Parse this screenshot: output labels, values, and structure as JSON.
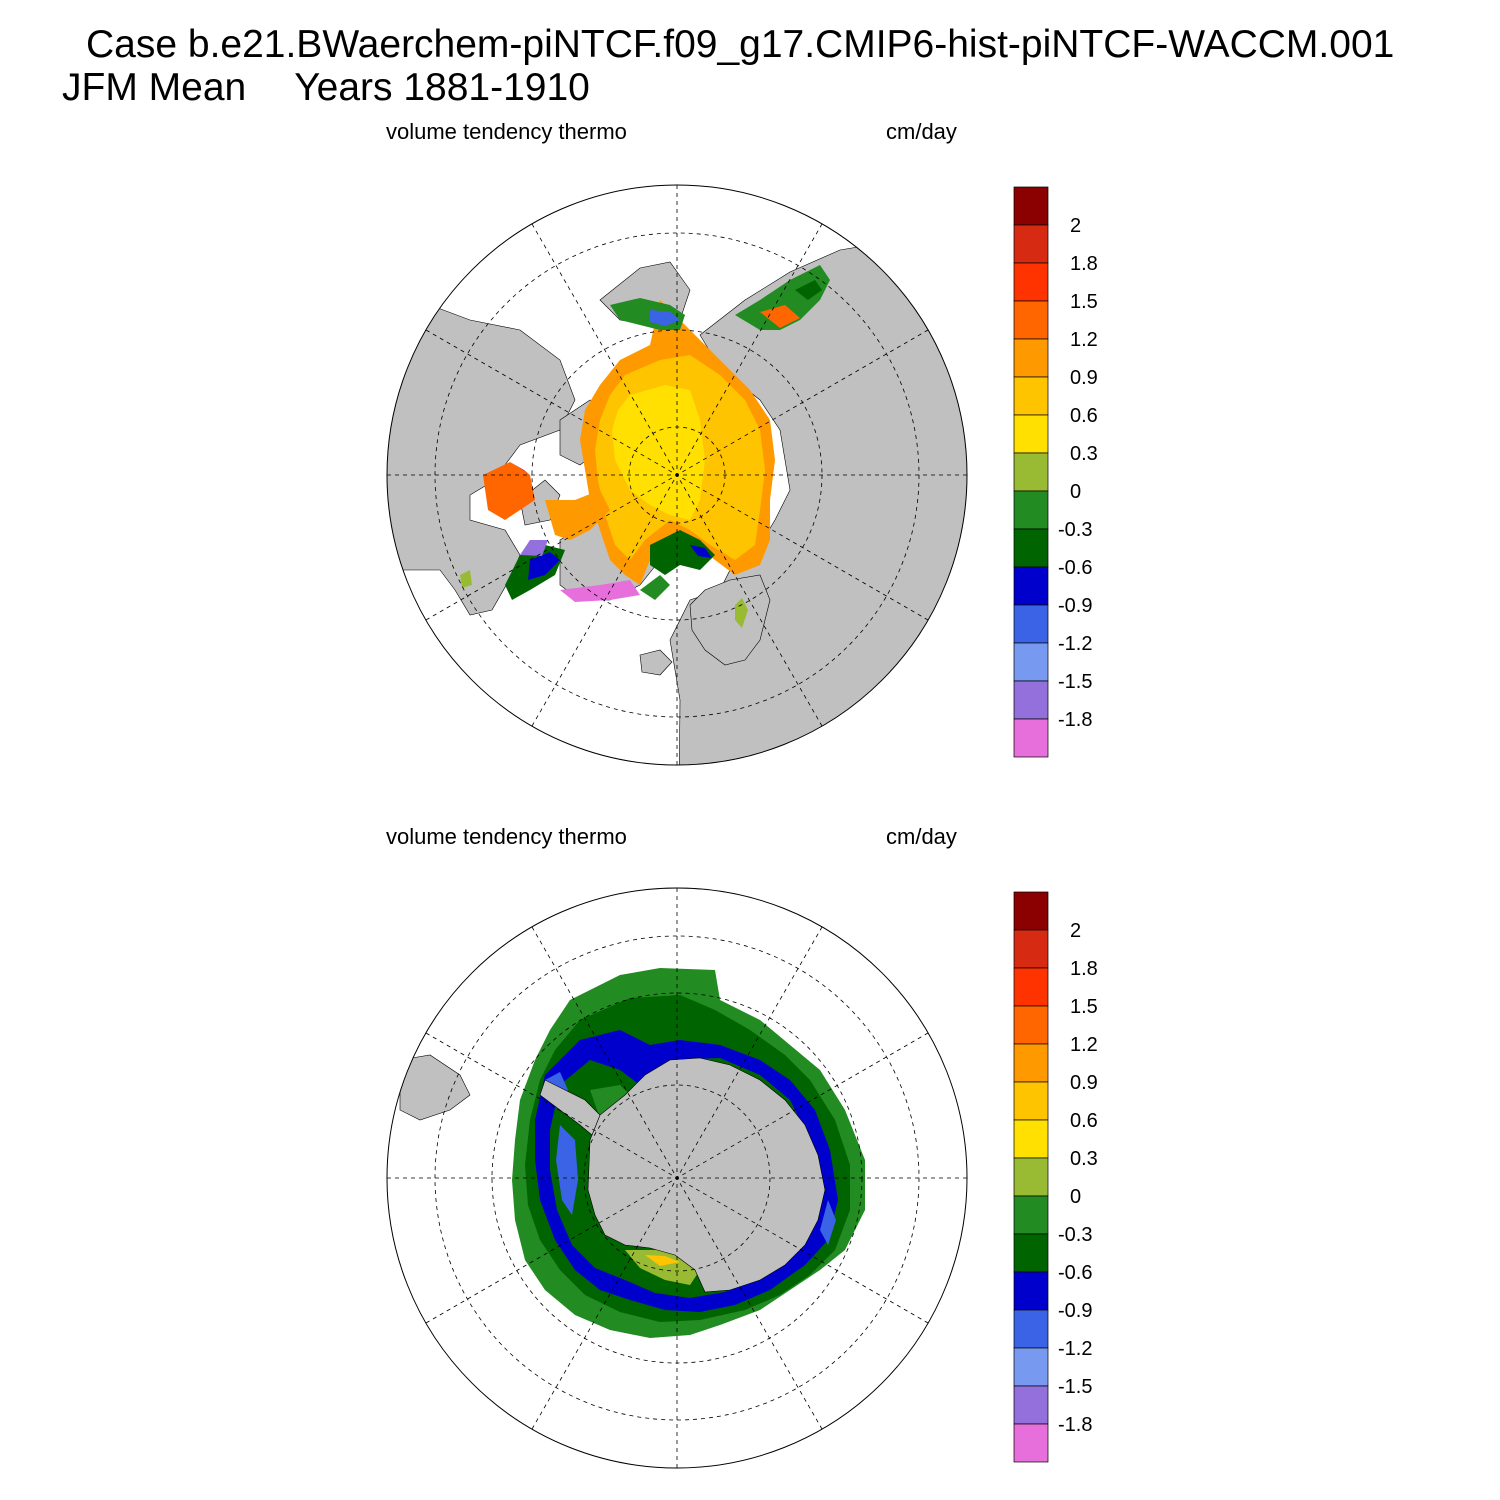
{
  "title": {
    "case": "Case b.e21.BWaerchem-piNTCF.f09_g17.CMIP6-hist-piNTCF-WACCM.001",
    "season": "JFM Mean",
    "years": "Years 1881-1910"
  },
  "panels": [
    {
      "id": "nh",
      "variable": "volume tendency thermo",
      "units": "cm/day"
    },
    {
      "id": "sh",
      "variable": "volume tendency thermo",
      "units": "cm/day"
    }
  ],
  "colorbar": {
    "labels": [
      "2",
      "1.8",
      "1.5",
      "1.2",
      "0.9",
      "0.6",
      "0.3",
      "0",
      "-0.3",
      "-0.6",
      "-0.9",
      "-1.2",
      "-1.5",
      "-1.8"
    ],
    "colors": [
      "#8b0000",
      "#d62a12",
      "#ff3300",
      "#ff6600",
      "#ff9900",
      "#ffc400",
      "#ffe000",
      "#99bb33",
      "#228b22",
      "#006400",
      "#0000cc",
      "#3a63e6",
      "#7799f0",
      "#9370db",
      "#e66fdc"
    ]
  },
  "map_colors": {
    "land": "#c0c0c0",
    "ocean": "#ffffff"
  }
}
